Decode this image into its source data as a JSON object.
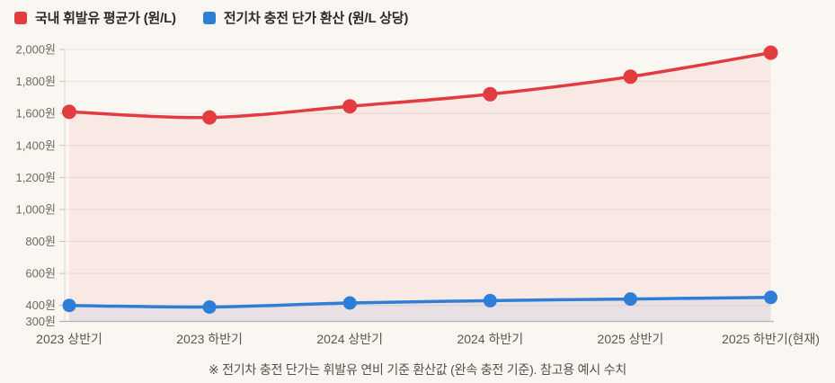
{
  "colors": {
    "background": "#faf7f2",
    "gridline": "#e9e2db",
    "axis_line": "#ddd6cd",
    "baseline": "#b9b4ae",
    "tick": "#c8c2ba",
    "y_label_text": "#6f6a62",
    "x_label_text": "#5b564e",
    "legend_text": "#2e2a25",
    "footnote_text": "#55504a"
  },
  "chart_data": {
    "type": "line",
    "categories": [
      "2023 상반기",
      "2023 하반기",
      "2024 상반기",
      "2024 하반기",
      "2025 상반기",
      "2025 하반기(현재)"
    ],
    "series": [
      {
        "name": "국내 휘발유 평균가 (원/L)",
        "color": "#e23b40",
        "fill": "rgba(226,59,64,0.07)",
        "values": [
          1610,
          1575,
          1645,
          1720,
          1830,
          1980
        ]
      },
      {
        "name": "전기차 충전 단가 환산 (원/L 상당)",
        "color": "#2e7ed8",
        "fill": "rgba(46,126,216,0.08)",
        "values": [
          400,
          390,
          415,
          430,
          440,
          450
        ]
      }
    ],
    "ylim": [
      300,
      2000
    ],
    "y_ticks": [
      {
        "value": 2000,
        "label": "2,000원"
      },
      {
        "value": 1800,
        "label": "1,800원"
      },
      {
        "value": 1600,
        "label": "1,600원"
      },
      {
        "value": 1400,
        "label": "1,400원"
      },
      {
        "value": 1200,
        "label": "1,200원"
      },
      {
        "value": 1000,
        "label": "1,000원"
      },
      {
        "value": 800,
        "label": "800원"
      },
      {
        "value": 600,
        "label": "600원"
      },
      {
        "value": 400,
        "label": "400원"
      },
      {
        "value": 300,
        "label": "300원"
      }
    ],
    "grid": true,
    "legend_position": "top-left",
    "footnote": "※ 전기차 충전 단가는 휘발유 연비 기준 환산값 (완속 충전 기준). 참고용 예시 수치"
  }
}
